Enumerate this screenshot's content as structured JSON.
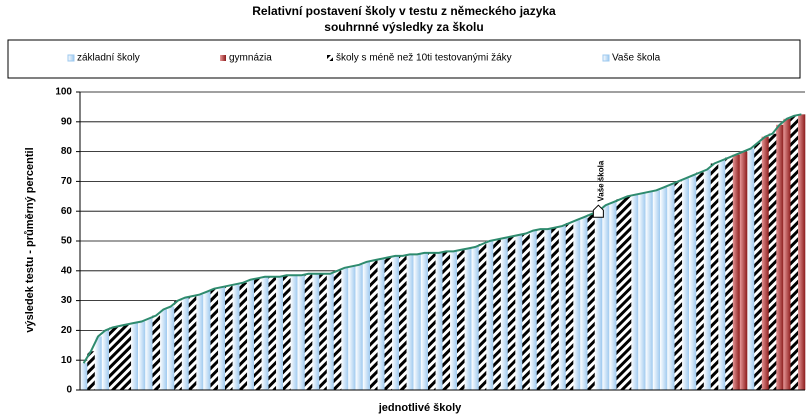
{
  "chart_data": {
    "type": "bar",
    "title": "Relativní postavení školy v testu z německého jazyka",
    "subtitle": "souhrnné výsledky za školu",
    "x_label": "jednotlivé školy",
    "y_label": "výsledek testu - průměrný percentil",
    "annotation": "Vaše škola",
    "xlim": [
      0.5,
      100.5
    ],
    "ylim": [
      0,
      100
    ],
    "yticks": [
      0,
      10,
      20,
      30,
      40,
      50,
      60,
      70,
      80,
      90,
      100
    ],
    "grid": true,
    "line_color": "#2e8b6e",
    "series": [
      {
        "name": "základní školy",
        "color": "#9cc8ef",
        "x": [
          1,
          3,
          4,
          8,
          9,
          10,
          12,
          13,
          15,
          17,
          18,
          20,
          22,
          24,
          26,
          28,
          30,
          31,
          33,
          35,
          37,
          38,
          39,
          40,
          42,
          44,
          46,
          47,
          48,
          50,
          52,
          54,
          55,
          57,
          59,
          61,
          63,
          65,
          67,
          69,
          70,
          73,
          74,
          77,
          78,
          79,
          80,
          81,
          82,
          84,
          85,
          87,
          89,
          93
        ],
        "values": [
          9,
          18,
          20,
          22.5,
          23,
          24,
          27,
          28,
          31,
          32,
          33,
          34.5,
          35.5,
          37,
          38,
          38,
          38.5,
          38.5,
          39,
          39,
          41,
          41.5,
          42,
          43,
          44,
          45,
          45.5,
          45.5,
          46,
          46,
          46.5,
          47.5,
          48,
          50,
          51,
          52,
          53.5,
          54,
          55,
          57,
          58,
          62,
          63,
          65.5,
          66,
          66.5,
          67,
          68,
          69,
          71,
          72,
          74,
          77,
          81
        ]
      },
      {
        "name": "gymnázia",
        "color": "#8b1a1a",
        "x": [
          91,
          92,
          95,
          97,
          98,
          100
        ],
        "values": [
          79,
          80,
          85,
          89,
          91,
          92.5
        ]
      },
      {
        "name": "školy s méně než 10ti testovanými žáky",
        "color": "#000000",
        "x": [
          2,
          5,
          6,
          7,
          11,
          14,
          16,
          19,
          21,
          23,
          25,
          27,
          29,
          32,
          34,
          36,
          41,
          43,
          45,
          49,
          51,
          53,
          56,
          58,
          60,
          62,
          64,
          66,
          68,
          71,
          75,
          76,
          83,
          86,
          88,
          90,
          94,
          96,
          99
        ],
        "values": [
          13,
          21,
          21.5,
          22,
          25,
          30,
          31.5,
          34,
          35,
          36,
          37.5,
          38,
          38.5,
          39,
          39,
          40,
          43.5,
          44.5,
          45,
          46,
          46.5,
          47,
          49,
          50.5,
          51.5,
          52.5,
          54,
          54.5,
          56,
          59,
          64,
          65,
          70,
          73,
          76,
          78,
          83,
          86,
          92
        ]
      },
      {
        "name": "Vaše škola",
        "color": "#9cc8ef",
        "x": [
          72
        ],
        "values": [
          60
        ]
      }
    ]
  }
}
